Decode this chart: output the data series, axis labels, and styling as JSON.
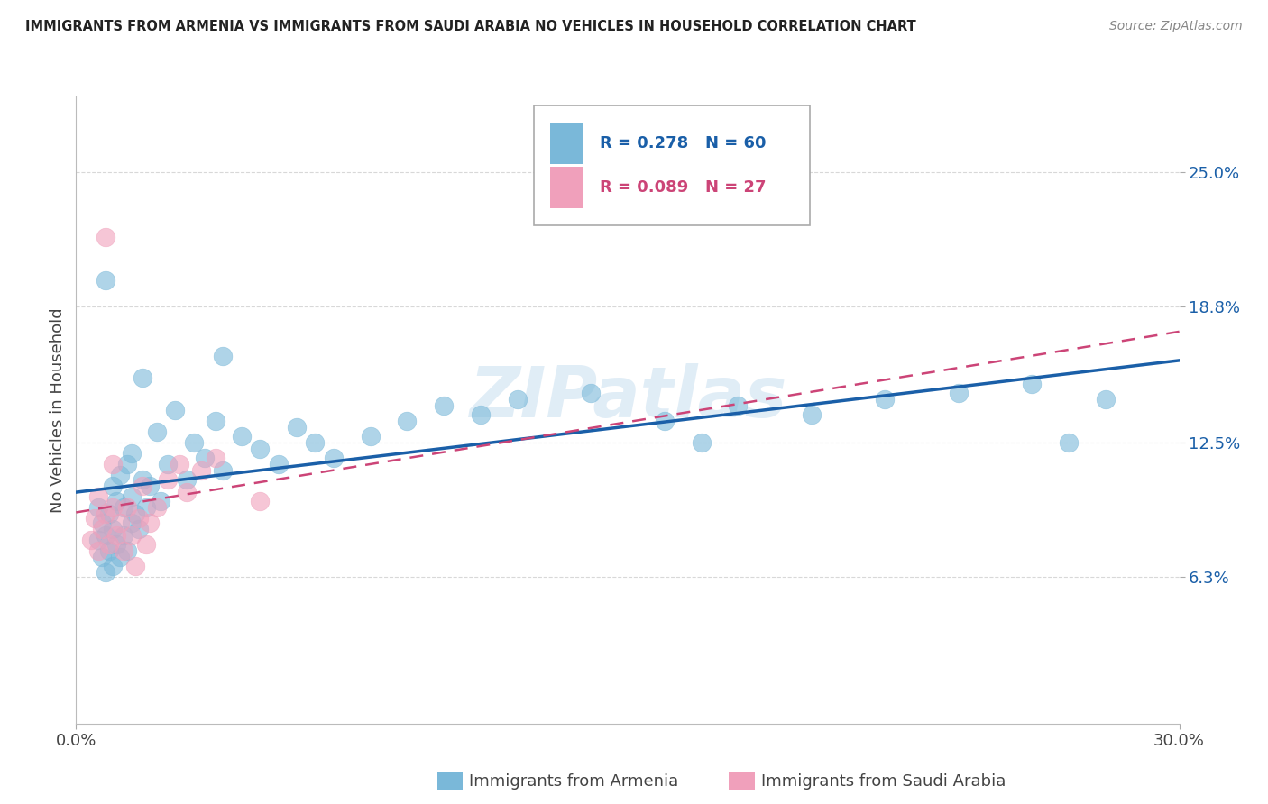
{
  "title": "IMMIGRANTS FROM ARMENIA VS IMMIGRANTS FROM SAUDI ARABIA NO VEHICLES IN HOUSEHOLD CORRELATION CHART",
  "source": "Source: ZipAtlas.com",
  "ylabel": "No Vehicles in Household",
  "xlabel_armenia": "Immigrants from Armenia",
  "xlabel_saudi": "Immigrants from Saudi Arabia",
  "xlim": [
    0.0,
    0.3
  ],
  "ylim": [
    -0.005,
    0.285
  ],
  "ytick_positions": [
    0.063,
    0.125,
    0.188,
    0.25
  ],
  "ytick_labels": [
    "6.3%",
    "12.5%",
    "18.8%",
    "25.0%"
  ],
  "legend_r_armenia": "R = 0.278",
  "legend_n_armenia": "N = 60",
  "legend_r_saudi": "R = 0.089",
  "legend_n_saudi": "N = 27",
  "color_armenia": "#7ab8d9",
  "color_saudi": "#f0a0bb",
  "color_trendline_armenia": "#1a5fa8",
  "color_trendline_saudi": "#cc4477",
  "watermark": "ZIPatlas",
  "armenia_x": [
    0.006,
    0.006,
    0.007,
    0.007,
    0.008,
    0.008,
    0.009,
    0.009,
    0.01,
    0.01,
    0.01,
    0.011,
    0.011,
    0.012,
    0.012,
    0.013,
    0.013,
    0.014,
    0.014,
    0.015,
    0.015,
    0.015,
    0.016,
    0.017,
    0.018,
    0.019,
    0.02,
    0.022,
    0.023,
    0.025,
    0.027,
    0.03,
    0.032,
    0.035,
    0.038,
    0.04,
    0.045,
    0.05,
    0.055,
    0.06,
    0.065,
    0.07,
    0.08,
    0.09,
    0.1,
    0.11,
    0.12,
    0.14,
    0.16,
    0.18,
    0.2,
    0.22,
    0.24,
    0.26,
    0.28,
    0.008,
    0.018,
    0.04,
    0.17,
    0.27
  ],
  "armenia_y": [
    0.08,
    0.095,
    0.072,
    0.088,
    0.065,
    0.082,
    0.075,
    0.092,
    0.068,
    0.085,
    0.105,
    0.078,
    0.098,
    0.072,
    0.11,
    0.082,
    0.095,
    0.075,
    0.115,
    0.088,
    0.1,
    0.12,
    0.092,
    0.085,
    0.108,
    0.095,
    0.105,
    0.13,
    0.098,
    0.115,
    0.14,
    0.108,
    0.125,
    0.118,
    0.135,
    0.112,
    0.128,
    0.122,
    0.115,
    0.132,
    0.125,
    0.118,
    0.128,
    0.135,
    0.142,
    0.138,
    0.145,
    0.148,
    0.135,
    0.142,
    0.138,
    0.145,
    0.148,
    0.152,
    0.145,
    0.2,
    0.155,
    0.165,
    0.125,
    0.125
  ],
  "saudi_x": [
    0.004,
    0.005,
    0.006,
    0.006,
    0.007,
    0.008,
    0.009,
    0.01,
    0.01,
    0.011,
    0.012,
    0.013,
    0.014,
    0.015,
    0.016,
    0.017,
    0.018,
    0.019,
    0.02,
    0.022,
    0.025,
    0.028,
    0.03,
    0.034,
    0.038,
    0.008,
    0.05
  ],
  "saudi_y": [
    0.08,
    0.09,
    0.075,
    0.1,
    0.085,
    0.092,
    0.078,
    0.095,
    0.115,
    0.082,
    0.088,
    0.075,
    0.095,
    0.082,
    0.068,
    0.09,
    0.105,
    0.078,
    0.088,
    0.095,
    0.108,
    0.115,
    0.102,
    0.112,
    0.118,
    0.22,
    0.098
  ],
  "background_color": "#ffffff",
  "grid_color": "#d8d8d8"
}
